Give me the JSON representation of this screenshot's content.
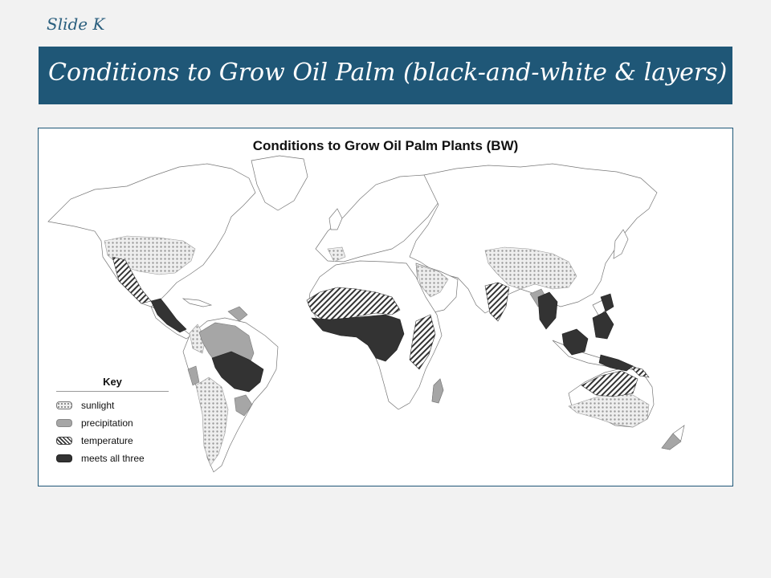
{
  "slide": {
    "label": "Slide K",
    "title": "Conditions to Grow Oil Palm (black-and-white & layers)"
  },
  "map": {
    "title": "Conditions to Grow Oil Palm Plants (BW)",
    "key": {
      "title": "Key",
      "items": [
        {
          "id": "sunlight",
          "label": "sunlight"
        },
        {
          "id": "precipitation",
          "label": "precipitation"
        },
        {
          "id": "temperature",
          "label": "temperature"
        },
        {
          "id": "all",
          "label": "meets all three"
        }
      ]
    },
    "colors": {
      "title_bar": "#1f5777",
      "precipitation": "#a6a6a6",
      "meets_all_three": "#333333"
    }
  }
}
